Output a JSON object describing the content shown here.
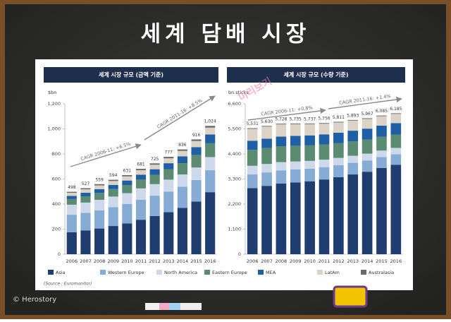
{
  "title": "세계 담배 시장",
  "watermark": "미리보기",
  "credit": "© Herostory",
  "source": "(Source : Euromonitor)",
  "chart_data": [
    {
      "type": "stacked-bar",
      "title": "세계 시장 규모 (금액 기준)",
      "y_label": "$bn",
      "categories": [
        "2006",
        "2007",
        "2008",
        "2009",
        "2010",
        "2011",
        "2012",
        "2013",
        "2014",
        "2015",
        "2016"
      ],
      "ylim": [
        0,
        1200
      ],
      "yticks": [
        0,
        200,
        400,
        600,
        800,
        {
          "value": 1000,
          "label": "1,000"
        },
        {
          "value": 1200,
          "label": "1,200"
        }
      ],
      "series": [
        {
          "name": "Asia",
          "color": "#1f3d6e",
          "values": [
            175,
            190,
            205,
            225,
            245,
            275,
            305,
            335,
            370,
            420,
            495
          ]
        },
        {
          "name": "Western Europe",
          "color": "#86acd6",
          "values": [
            140,
            140,
            145,
            150,
            155,
            160,
            162,
            165,
            168,
            172,
            175
          ]
        },
        {
          "name": "North America",
          "color": "#cdd9ea",
          "values": [
            80,
            82,
            84,
            85,
            87,
            90,
            92,
            95,
            98,
            100,
            105
          ]
        },
        {
          "name": "Eastern Europe",
          "color": "#5b8b70",
          "values": [
            45,
            50,
            55,
            60,
            65,
            70,
            75,
            82,
            90,
            100,
            110
          ]
        },
        {
          "name": "MEA",
          "color": "#1f5fa6",
          "values": [
            25,
            28,
            30,
            33,
            36,
            40,
            44,
            49,
            55,
            62,
            70
          ]
        },
        {
          "name": "LatAm",
          "color": "#dcd3c6",
          "values": [
            25,
            28,
            30,
            31,
            33,
            35,
            36,
            39,
            43,
            49,
            55
          ]
        },
        {
          "name": "Australasia",
          "color": "#6b6b6b",
          "values": [
            8,
            9,
            10,
            10,
            10,
            11,
            11,
            12,
            12,
            13,
            14
          ]
        }
      ],
      "totals": [
        498,
        527,
        559,
        594,
        631,
        681,
        725,
        777,
        836,
        916,
        1024
      ],
      "total_labels": [
        "498",
        "527",
        "559",
        "594",
        "631",
        "681",
        "725",
        "777",
        "836",
        "916",
        "1,024"
      ],
      "annotations": [
        "CAGR 2006-11: +6.5%",
        "CAGR 2011-16: +8.5%"
      ]
    },
    {
      "type": "stacked-bar",
      "title": "세계 시장 규모 (수량 기준)",
      "y_label": "bn sticks",
      "categories": [
        "2006",
        "2007",
        "2008",
        "2009",
        "2010",
        "2011",
        "2012",
        "2013",
        "2014",
        "2015",
        "2016"
      ],
      "ylim": [
        0,
        6600
      ],
      "yticks": [
        0,
        {
          "value": 1100,
          "label": "1,100"
        },
        {
          "value": 2200,
          "label": "2,200"
        },
        {
          "value": 3300,
          "label": "3,300"
        },
        {
          "value": 4400,
          "label": "4,400"
        },
        {
          "value": 5500,
          "label": "5,500"
        },
        {
          "value": 6600,
          "label": "6,600"
        }
      ],
      "series": [
        {
          "color": "#1f3d6e",
          "values": [
            2900,
            3000,
            3100,
            3150,
            3200,
            3280,
            3380,
            3500,
            3620,
            3780,
            3920
          ]
        },
        {
          "color": "#86acd6",
          "values": [
            600,
            590,
            580,
            570,
            555,
            540,
            525,
            510,
            495,
            480,
            465
          ]
        },
        {
          "color": "#cdd9ea",
          "values": [
            380,
            370,
            360,
            350,
            340,
            330,
            320,
            310,
            300,
            290,
            280
          ]
        },
        {
          "color": "#5b8b70",
          "values": [
            700,
            700,
            700,
            690,
            680,
            660,
            645,
            630,
            615,
            600,
            585
          ]
        },
        {
          "color": "#1f5fa6",
          "values": [
            400,
            410,
            420,
            430,
            440,
            450,
            460,
            470,
            480,
            490,
            500
          ]
        },
        {
          "color": "#dcd3c6",
          "values": [
            520,
            530,
            538,
            515,
            492,
            466,
            451,
            443,
            427,
            415,
            405
          ]
        },
        {
          "color": "#6b6b6b",
          "values": [
            31,
            30,
            30,
            30,
            30,
            30,
            30,
            30,
            30,
            30,
            30
          ]
        }
      ],
      "totals": [
        5531,
        5630,
        5728,
        5735,
        5737,
        5756,
        5811,
        5893,
        5967,
        6085,
        6185
      ],
      "total_labels": [
        "5,531",
        "5,630",
        "5,728",
        "5,735",
        "5,737",
        "5,756",
        "5,811",
        "5,893",
        "5,967",
        "6,085",
        "6,185"
      ],
      "annotations": [
        "CAGR 2006-11: +0.8%",
        "CAGR 2011-16: +1.4%"
      ]
    }
  ]
}
